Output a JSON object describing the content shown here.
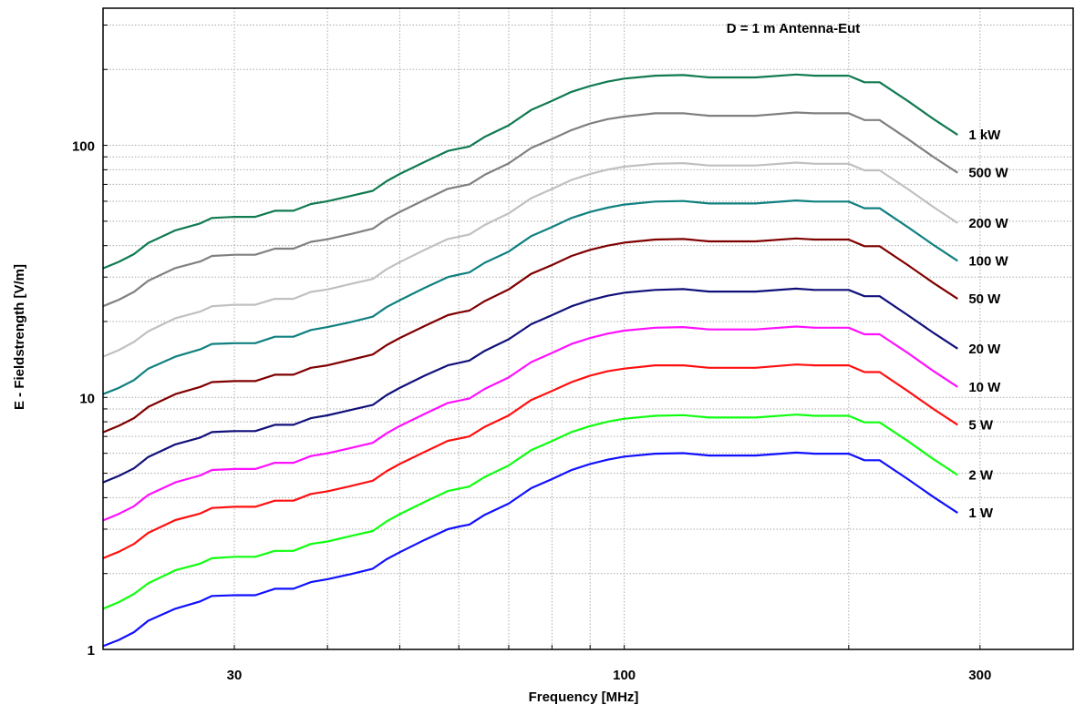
{
  "chart_data": {
    "type": "line",
    "title": "D = 1 m Antenna-Eut",
    "xlabel": "Frequency [MHz]",
    "ylabel": "E - Fieldstrength [V/m]",
    "x_scale": "log",
    "y_scale": "log",
    "xlim": [
      20,
      400
    ],
    "ylim": [
      1,
      350
    ],
    "x_ticks": [
      {
        "value": 30,
        "label": "30"
      },
      {
        "value": 100,
        "label": "100"
      },
      {
        "value": 300,
        "label": "300"
      }
    ],
    "y_ticks": [
      {
        "value": 1,
        "label": "1"
      },
      {
        "value": 10,
        "label": "10"
      },
      {
        "value": 100,
        "label": "100"
      }
    ],
    "grid": true,
    "legend": "labels at right end of each curve",
    "x": [
      20,
      21,
      22,
      23,
      25,
      27,
      28,
      30,
      32,
      34,
      36,
      38,
      40,
      43,
      46,
      48,
      50,
      54,
      58,
      60,
      62,
      65,
      70,
      75,
      80,
      85,
      90,
      95,
      100,
      110,
      120,
      130,
      150,
      170,
      180,
      200,
      210,
      220,
      240,
      260,
      280
    ],
    "series": [
      {
        "name": "1 kW",
        "color": "#107a50",
        "values": [
          32.5,
          34.5,
          37,
          41,
          46,
          49,
          51.5,
          52,
          52,
          55,
          55,
          58.5,
          60,
          63,
          66,
          72,
          77,
          86,
          95,
          97,
          99,
          108,
          120,
          138,
          150,
          163,
          172,
          179,
          184,
          189,
          190,
          186,
          186,
          191,
          189,
          189,
          178,
          178,
          150,
          127,
          110
        ]
      },
      {
        "name": "500 W",
        "color": "#808080",
        "values": [
          23,
          24.4,
          26.2,
          29,
          32.6,
          34.6,
          36.4,
          36.8,
          36.8,
          38.9,
          38.9,
          41.4,
          42.4,
          44.5,
          46.7,
          50.9,
          54.4,
          60.8,
          67.2,
          68.6,
          70,
          76.4,
          84.8,
          97.6,
          106,
          115,
          122,
          127,
          130,
          134,
          134,
          131,
          131,
          135,
          134,
          134,
          126,
          126,
          106,
          89.8,
          77.8
        ]
      },
      {
        "name": "200 W",
        "color": "#c0c0c0",
        "values": [
          14.5,
          15.4,
          16.6,
          18.3,
          20.6,
          21.9,
          23,
          23.3,
          23.3,
          24.6,
          24.6,
          26.2,
          26.8,
          28.2,
          29.5,
          32.2,
          34.4,
          38.5,
          42.5,
          43.4,
          44.3,
          48.3,
          53.7,
          61.7,
          67.1,
          72.9,
          76.9,
          80.1,
          82.3,
          84.5,
          85,
          83.2,
          83.2,
          85.4,
          84.5,
          84.5,
          79.6,
          79.6,
          67.1,
          56.8,
          49.2
        ]
      },
      {
        "name": "100 W",
        "color": "#108080",
        "values": [
          10.3,
          10.9,
          11.7,
          13,
          14.5,
          15.5,
          16.3,
          16.4,
          16.4,
          17.4,
          17.4,
          18.5,
          19,
          19.9,
          20.9,
          22.8,
          24.3,
          27.2,
          30,
          30.7,
          31.3,
          34.2,
          37.9,
          43.6,
          47.4,
          51.5,
          54.4,
          56.6,
          58.2,
          59.8,
          60.1,
          58.8,
          58.8,
          60.4,
          59.8,
          59.8,
          56.3,
          56.3,
          47.4,
          40.2,
          34.8
        ]
      },
      {
        "name": "50 W",
        "color": "#800000",
        "values": [
          7.27,
          7.71,
          8.27,
          9.17,
          10.3,
          11,
          11.5,
          11.6,
          11.6,
          12.3,
          12.3,
          13.1,
          13.4,
          14.1,
          14.8,
          16.1,
          17.2,
          19.2,
          21.2,
          21.7,
          22.1,
          24.1,
          26.8,
          30.9,
          33.5,
          36.4,
          38.5,
          40,
          41.1,
          42.3,
          42.5,
          41.6,
          41.6,
          42.7,
          42.3,
          42.3,
          39.8,
          39.8,
          33.5,
          28.4,
          24.6
        ]
      },
      {
        "name": "20 W",
        "color": "#10107a",
        "values": [
          4.6,
          4.88,
          5.23,
          5.8,
          6.51,
          6.93,
          7.28,
          7.35,
          7.35,
          7.78,
          7.78,
          8.27,
          8.49,
          8.91,
          9.33,
          10.2,
          10.9,
          12.2,
          13.4,
          13.7,
          14,
          15.3,
          17,
          19.5,
          21.2,
          23,
          24.3,
          25.3,
          26,
          26.7,
          26.9,
          26.3,
          26.3,
          27,
          26.7,
          26.7,
          25.2,
          25.2,
          21.2,
          18,
          15.6
        ]
      },
      {
        "name": "10 W",
        "color": "#ff10ff",
        "values": [
          3.25,
          3.45,
          3.7,
          4.1,
          4.6,
          4.9,
          5.15,
          5.2,
          5.2,
          5.5,
          5.5,
          5.85,
          6,
          6.3,
          6.6,
          7.2,
          7.7,
          8.6,
          9.5,
          9.7,
          9.9,
          10.8,
          12,
          13.8,
          15,
          16.3,
          17.2,
          17.9,
          18.4,
          18.9,
          19,
          18.6,
          18.6,
          19.1,
          18.9,
          18.9,
          17.8,
          17.8,
          15,
          12.7,
          11
        ]
      },
      {
        "name": "5 W",
        "color": "#ff1010",
        "values": [
          2.3,
          2.44,
          2.62,
          2.9,
          3.26,
          3.46,
          3.64,
          3.68,
          3.68,
          3.89,
          3.89,
          4.14,
          4.24,
          4.45,
          4.67,
          5.09,
          5.44,
          6.08,
          6.72,
          6.86,
          7,
          7.64,
          8.48,
          9.76,
          10.6,
          11.5,
          12.2,
          12.7,
          13,
          13.4,
          13.4,
          13.1,
          13.1,
          13.5,
          13.4,
          13.4,
          12.6,
          12.6,
          10.6,
          8.98,
          7.78
        ]
      },
      {
        "name": "2 W",
        "color": "#10ff10",
        "values": [
          1.45,
          1.54,
          1.66,
          1.83,
          2.06,
          2.19,
          2.3,
          2.33,
          2.33,
          2.46,
          2.46,
          2.62,
          2.68,
          2.82,
          2.95,
          3.22,
          3.44,
          3.85,
          4.25,
          4.34,
          4.43,
          4.83,
          5.37,
          6.17,
          6.71,
          7.29,
          7.69,
          8.01,
          8.23,
          8.45,
          8.5,
          8.32,
          8.32,
          8.54,
          8.45,
          8.45,
          7.96,
          7.96,
          6.71,
          5.68,
          4.92
        ]
      },
      {
        "name": "1 W",
        "color": "#1010ff",
        "values": [
          1.03,
          1.09,
          1.17,
          1.3,
          1.45,
          1.55,
          1.63,
          1.64,
          1.64,
          1.74,
          1.74,
          1.85,
          1.9,
          1.99,
          2.09,
          2.28,
          2.43,
          2.72,
          3,
          3.07,
          3.13,
          3.42,
          3.79,
          4.36,
          4.74,
          5.15,
          5.44,
          5.66,
          5.82,
          5.98,
          6.01,
          5.88,
          5.88,
          6.04,
          5.98,
          5.98,
          5.63,
          5.63,
          4.74,
          4.02,
          3.48
        ]
      }
    ]
  }
}
